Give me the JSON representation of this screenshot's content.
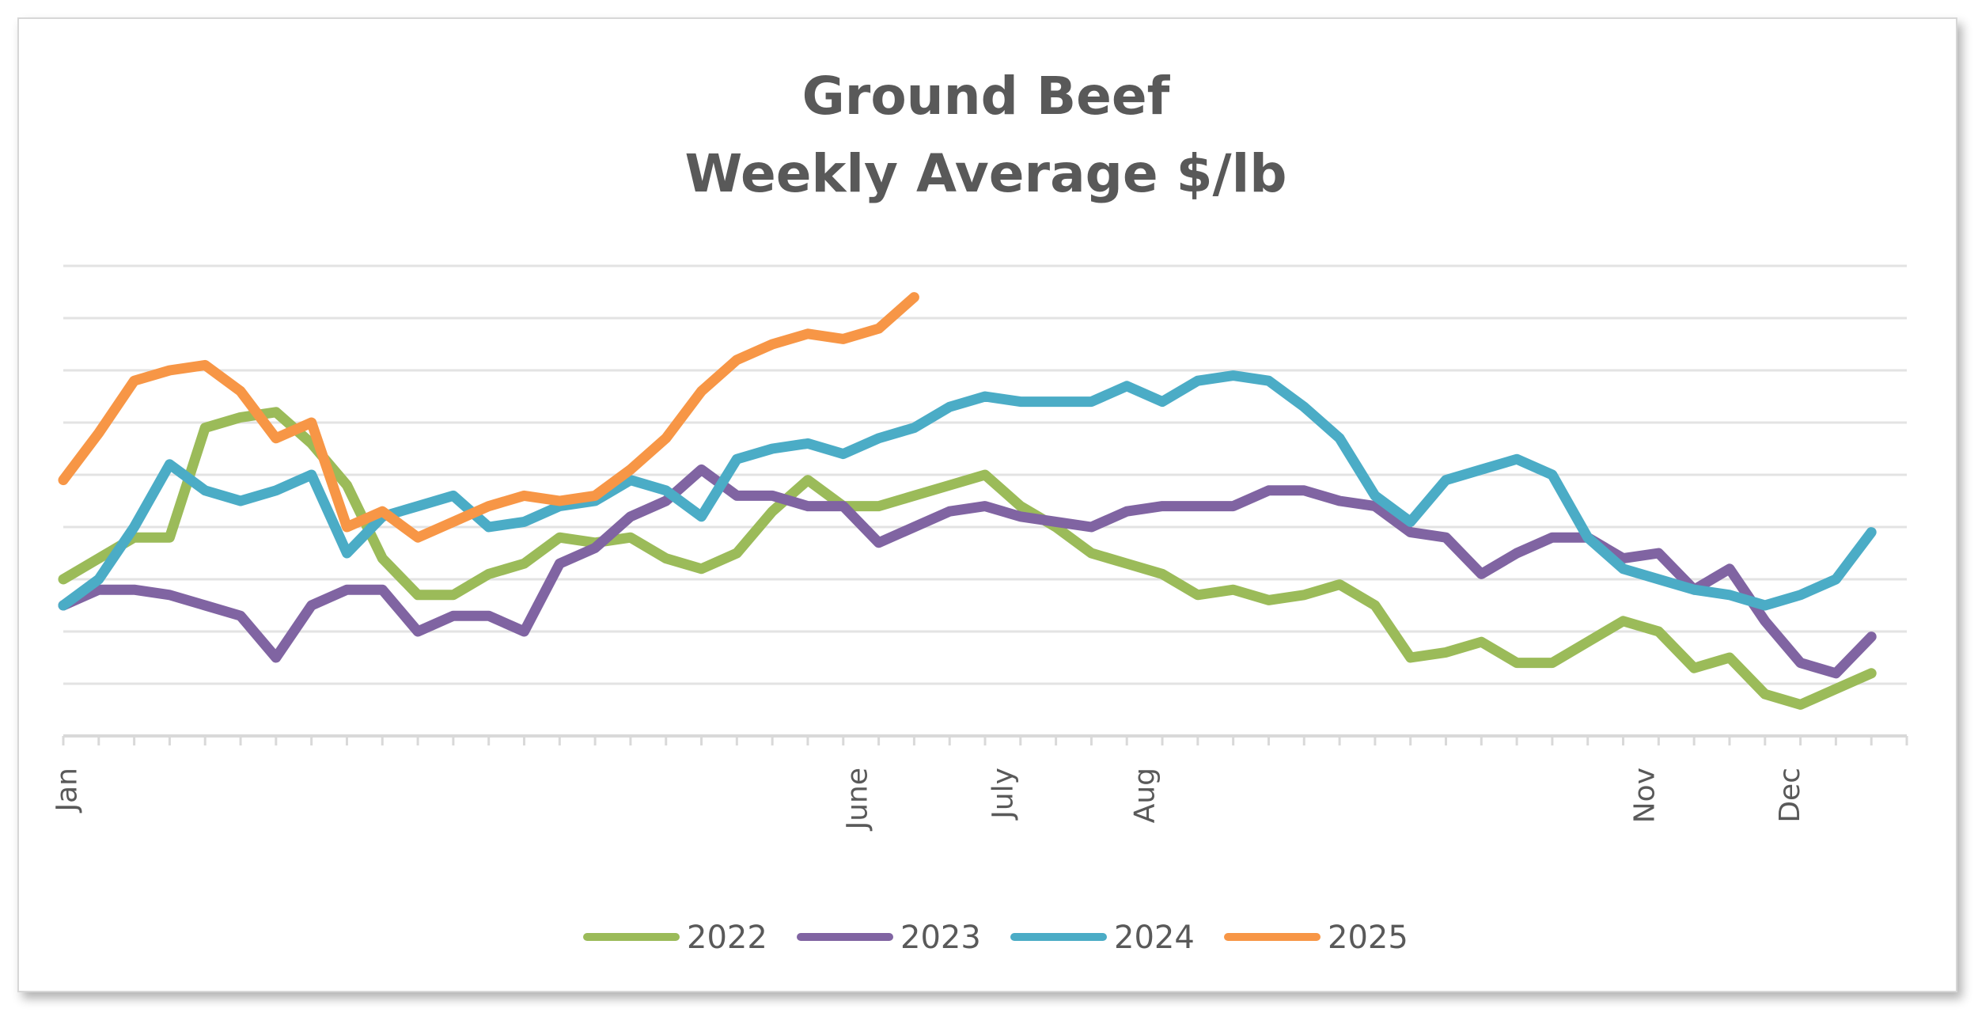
{
  "chart_data": {
    "type": "line",
    "title": "Ground Beef",
    "subtitle": "Weekly Average $/lb",
    "xlabel": "",
    "ylabel": "",
    "x_unit": "week",
    "x": [
      1,
      2,
      3,
      4,
      5,
      6,
      7,
      8,
      9,
      10,
      11,
      12,
      13,
      14,
      15,
      16,
      17,
      18,
      19,
      20,
      21,
      22,
      23,
      24,
      25,
      26,
      27,
      28,
      29,
      30,
      31,
      32,
      33,
      34,
      35,
      36,
      37,
      38,
      39,
      40,
      41,
      42,
      43,
      44,
      45,
      46,
      47,
      48,
      49,
      50,
      51,
      52
    ],
    "xlim": [
      1,
      53
    ],
    "ylim": [
      0,
      9
    ],
    "y_gridlines": 9,
    "y_tick_labels_shown": false,
    "grid": true,
    "legend_position": "bottom",
    "x_tick_labels": [
      {
        "label": "Jan",
        "week": 1.1
      },
      {
        "label": "June",
        "week": 23.4
      },
      {
        "label": "July",
        "week": 27.5
      },
      {
        "label": "Aug",
        "week": 31.5
      },
      {
        "label": "Nov",
        "week": 45.6
      },
      {
        "label": "Dec",
        "week": 49.7
      }
    ],
    "series": [
      {
        "name": "2022",
        "color": "#9bbb59",
        "values": [
          3.0,
          3.4,
          3.8,
          3.8,
          5.9,
          6.1,
          6.2,
          5.6,
          4.8,
          3.4,
          2.7,
          2.7,
          3.1,
          3.3,
          3.8,
          3.7,
          3.8,
          3.4,
          3.2,
          3.5,
          4.3,
          4.9,
          4.4,
          4.4,
          4.6,
          4.8,
          5.0,
          4.4,
          4.0,
          3.5,
          3.3,
          3.1,
          2.7,
          2.8,
          2.6,
          2.7,
          2.9,
          2.5,
          1.5,
          1.6,
          1.8,
          1.4,
          1.4,
          1.8,
          2.2,
          2.0,
          1.3,
          1.5,
          0.8,
          0.6,
          0.9,
          1.2
        ]
      },
      {
        "name": "2023",
        "color": "#8064a2",
        "values": [
          2.5,
          2.8,
          2.8,
          2.7,
          2.5,
          2.3,
          1.5,
          2.5,
          2.8,
          2.8,
          2.0,
          2.3,
          2.3,
          2.0,
          3.3,
          3.6,
          4.2,
          4.5,
          5.1,
          4.6,
          4.6,
          4.4,
          4.4,
          3.7,
          4.0,
          4.3,
          4.4,
          4.2,
          4.1,
          4.0,
          4.3,
          4.4,
          4.4,
          4.4,
          4.7,
          4.7,
          4.5,
          4.4,
          3.9,
          3.8,
          3.1,
          3.5,
          3.8,
          3.8,
          3.4,
          3.5,
          2.8,
          3.2,
          2.2,
          1.4,
          1.2,
          1.9
        ]
      },
      {
        "name": "2024",
        "color": "#4bacc6",
        "values": [
          2.5,
          3.0,
          4.0,
          5.2,
          4.7,
          4.5,
          4.7,
          5.0,
          3.5,
          4.2,
          4.4,
          4.6,
          4.0,
          4.1,
          4.4,
          4.5,
          4.9,
          4.7,
          4.2,
          5.3,
          5.5,
          5.6,
          5.4,
          5.7,
          5.9,
          6.3,
          6.5,
          6.4,
          6.4,
          6.4,
          6.7,
          6.4,
          6.8,
          6.9,
          6.8,
          6.3,
          5.7,
          4.6,
          4.1,
          4.9,
          5.1,
          5.3,
          5.0,
          3.8,
          3.2,
          3.0,
          2.8,
          2.7,
          2.5,
          2.7,
          3.0,
          3.9
        ]
      },
      {
        "name": "2025",
        "color": "#f79646",
        "values": [
          4.9,
          5.8,
          6.8,
          7.0,
          7.1,
          6.6,
          5.7,
          6.0,
          4.0,
          4.3,
          3.8,
          4.1,
          4.4,
          4.6,
          4.5,
          4.6,
          5.1,
          5.7,
          6.6,
          7.2,
          7.5,
          7.7,
          7.6,
          7.8,
          8.4,
          null,
          null,
          null,
          null,
          null,
          null,
          null,
          null,
          null,
          null,
          null,
          null,
          null,
          null,
          null,
          null,
          null,
          null,
          null,
          null,
          null,
          null,
          null,
          null,
          null,
          null,
          null
        ]
      }
    ]
  }
}
